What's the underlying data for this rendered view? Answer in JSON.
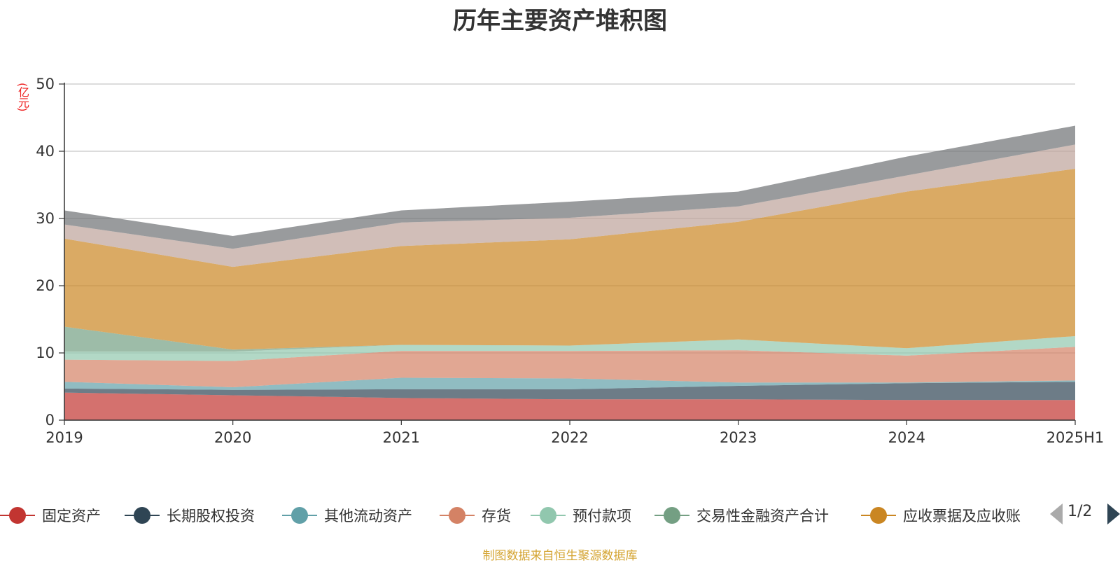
{
  "chart_data": {
    "type": "area",
    "stacked": true,
    "title": "历年主要资产堆积图",
    "unit_label": "(亿元)",
    "categories": [
      "2019",
      "2020",
      "2021",
      "2022",
      "2023",
      "2024",
      "2025H1"
    ],
    "ylim": [
      0,
      50
    ],
    "yticks": [
      0,
      10,
      20,
      30,
      40,
      50
    ],
    "grid": true,
    "legend_position": "bottom",
    "series": [
      {
        "name": "固定资产",
        "color": "#c23531",
        "values": [
          4.1,
          3.7,
          3.3,
          3.1,
          3.1,
          3.0,
          3.0
        ]
      },
      {
        "name": "长期股权投资",
        "color": "#2f4554",
        "values": [
          0.6,
          0.8,
          1.3,
          1.5,
          2.0,
          2.5,
          2.7
        ]
      },
      {
        "name": "其他流动资产",
        "color": "#61a0a8",
        "values": [
          1.0,
          0.4,
          1.7,
          1.6,
          0.5,
          0.1,
          0.2
        ]
      },
      {
        "name": "存货",
        "color": "#d48265",
        "values": [
          3.3,
          3.9,
          4.0,
          4.1,
          4.8,
          4.0,
          5.0
        ]
      },
      {
        "name": "预付款项",
        "color": "#91c7ae",
        "values": [
          1.2,
          1.4,
          0.9,
          0.8,
          1.6,
          1.1,
          1.6
        ]
      },
      {
        "name": "交易性金融资产合计",
        "color": "#749f83",
        "values": [
          3.7,
          0.3,
          0.0,
          0.0,
          0.0,
          0.0,
          0.0
        ]
      },
      {
        "name": "应收票据及应收账",
        "color": "#ca8622",
        "values": [
          13.1,
          12.3,
          14.7,
          15.8,
          17.5,
          23.3,
          24.9
        ]
      },
      {
        "name": "",
        "color": "#bda29a",
        "values": [
          2.1,
          2.7,
          3.5,
          3.2,
          2.3,
          2.4,
          3.6
        ]
      },
      {
        "name": "",
        "color": "#6e7074",
        "values": [
          2.1,
          1.9,
          1.8,
          2.4,
          2.2,
          2.8,
          2.8
        ]
      }
    ]
  },
  "legend": {
    "items": [
      "固定资产",
      "长期股权投资",
      "其他流动资产",
      "存货",
      "预付款项",
      "交易性金融资产合计",
      "应收票据及应收账"
    ],
    "page_indicator": "1/2"
  },
  "footer": {
    "source_note": "制图数据来自恒生聚源数据库"
  }
}
